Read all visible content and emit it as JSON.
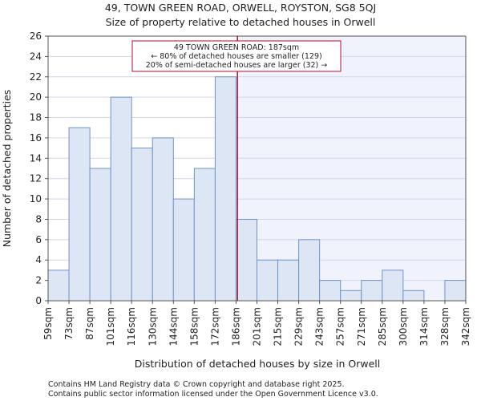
{
  "chart_data": {
    "type": "bar",
    "title_line1": "49, TOWN GREEN ROAD, ORWELL, ROYSTON, SG8 5QJ",
    "title_line2": "Size of property relative to detached houses in Orwell",
    "xlabel": "Distribution of detached houses by size in Orwell",
    "ylabel": "Number of detached properties",
    "ylim": [
      0,
      26
    ],
    "yticks": [
      0,
      2,
      4,
      6,
      8,
      10,
      12,
      14,
      16,
      18,
      20,
      22,
      24,
      26
    ],
    "bin_edges": [
      59,
      73,
      87,
      101,
      116,
      130,
      144,
      158,
      172,
      186,
      201,
      215,
      229,
      243,
      257,
      271,
      285,
      300,
      314,
      328,
      342
    ],
    "tick_labels": [
      "59sqm",
      "73sqm",
      "87sqm",
      "101sqm",
      "116sqm",
      "130sqm",
      "144sqm",
      "158sqm",
      "172sqm",
      "186sqm",
      "201sqm",
      "215sqm",
      "229sqm",
      "243sqm",
      "257sqm",
      "271sqm",
      "285sqm",
      "300sqm",
      "314sqm",
      "328sqm",
      "342sqm"
    ],
    "values": [
      3,
      17,
      13,
      20,
      15,
      16,
      10,
      13,
      22,
      8,
      4,
      4,
      6,
      2,
      1,
      2,
      3,
      1,
      0,
      2
    ],
    "marker_value": 187,
    "annotation": {
      "line1": "49 TOWN GREEN ROAD: 187sqm",
      "line2": "← 80% of detached houses are smaller (129)",
      "line3": "20% of semi-detached houses are larger (32) →"
    },
    "colors": {
      "bar_fill": "#dce6f5",
      "bar_edge": "#6f93c8",
      "highlight_bg": "#f0f3fb",
      "marker": "#aa1133",
      "axis": "#555555",
      "grid": "#cfd6e6"
    }
  },
  "footer": {
    "line1": "Contains HM Land Registry data © Crown copyright and database right 2025.",
    "line2": "Contains public sector information licensed under the Open Government Licence v3.0."
  }
}
